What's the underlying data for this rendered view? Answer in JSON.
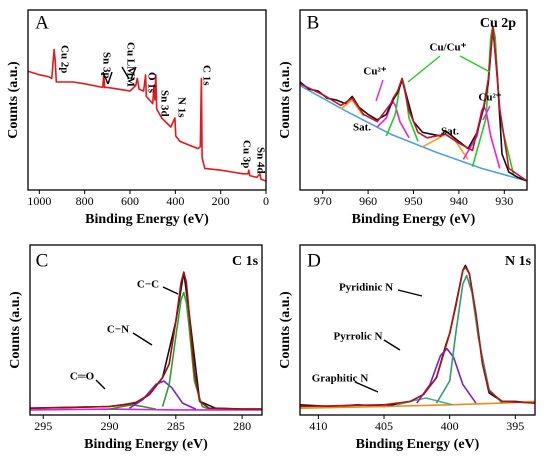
{
  "chart_data": [
    {
      "type": "line",
      "panel_label": "A",
      "xlabel": "Binding Energy (eV)",
      "ylabel": "Counts (a.u.)",
      "xlim": [
        1050,
        0
      ],
      "ylim": [
        0,
        100
      ],
      "xticks": [
        1000,
        800,
        600,
        400,
        200,
        0
      ],
      "annotations": [
        "Cu 2p",
        "Sn 3p",
        "Cu LMM",
        "O 1s",
        "Sn 3d",
        "N 1s",
        "C 1s",
        "Cu 3p",
        "Sn 4d"
      ],
      "series": [
        {
          "color": "#e8161b",
          "x": [
            1050,
            1000,
            960,
            945,
            935,
            930,
            925,
            900,
            850,
            800,
            760,
            720,
            716,
            712,
            700,
            650,
            600,
            575,
            568,
            560,
            540,
            531,
            528,
            500,
            494,
            490,
            486,
            482,
            460,
            420,
            402,
            398,
            380,
            340,
            300,
            290,
            285,
            282,
            270,
            200,
            150,
            100,
            80,
            76,
            72,
            40,
            27,
            22,
            0
          ],
          "values": [
            66,
            64,
            63,
            62,
            78,
            72,
            60,
            60,
            60,
            59,
            58,
            57,
            64,
            57,
            57,
            56,
            55,
            58,
            62,
            56,
            55,
            64,
            52,
            48,
            58,
            50,
            64,
            45,
            40,
            35,
            40,
            30,
            27,
            25,
            23,
            24,
            62,
            18,
            12,
            11,
            10,
            9,
            9,
            11,
            8,
            7,
            9,
            6,
            5
          ]
        }
      ]
    },
    {
      "type": "line",
      "panel_label": "B",
      "title": "Cu 2p",
      "xlabel": "Binding Energy (eV)",
      "ylabel": "Counts (a.u.)",
      "xlim": [
        975,
        925
      ],
      "ylim": [
        0,
        100
      ],
      "xticks": [
        970,
        960,
        950,
        940,
        930
      ],
      "annotations": [
        "Sat.",
        "Cu²⁺",
        "Cu/Cu⁺",
        "Sat.",
        "Cu²⁺"
      ],
      "series": [
        {
          "color": "#4aa3df",
          "x": [
            975,
            965,
            955,
            945,
            935,
            925
          ],
          "values": [
            58,
            44,
            31,
            21,
            12,
            5
          ]
        },
        {
          "color": "#ff9a1a",
          "x": [
            966,
            963.5,
            961
          ],
          "values": [
            45,
            50,
            41
          ]
        },
        {
          "color": "#ff9a1a",
          "x": [
            948,
            945,
            943,
            941,
            938
          ],
          "values": [
            24,
            28,
            31,
            28,
            17
          ]
        },
        {
          "color": "#ee1fd8",
          "x": [
            958,
            956,
            955,
            954.5,
            954,
            953,
            951
          ],
          "values": [
            35,
            40,
            47,
            49,
            47,
            38,
            29
          ]
        },
        {
          "color": "#ee1fd8",
          "x": [
            939,
            936,
            935,
            934.5,
            934,
            933,
            931
          ],
          "values": [
            17,
            30,
            44,
            46,
            44,
            30,
            12
          ]
        },
        {
          "color": "#22cc22",
          "x": [
            956,
            954,
            953,
            952.5,
            952,
            951,
            949
          ],
          "values": [
            30,
            42,
            58,
            62,
            58,
            40,
            27
          ]
        },
        {
          "color": "#22cc22",
          "x": [
            937,
            934,
            933,
            932.5,
            932,
            931,
            928
          ],
          "values": [
            13,
            40,
            85,
            91,
            85,
            40,
            9
          ]
        },
        {
          "color": "#111111",
          "x": [
            975,
            973,
            971,
            969,
            967,
            965,
            963.5,
            962,
            960,
            958,
            956,
            954.5,
            953.5,
            952.5,
            951.5,
            950,
            948,
            946,
            944,
            943,
            942,
            940,
            938,
            936,
            934.5,
            933.5,
            932.5,
            931.5,
            930.5,
            929,
            927,
            925
          ],
          "values": [
            60,
            56,
            55,
            51,
            50,
            48,
            52,
            46,
            42,
            39,
            42,
            50,
            54,
            61,
            52,
            38,
            32,
            31,
            30,
            33,
            31,
            27,
            23,
            32,
            46,
            60,
            90,
            62,
            20,
            10,
            7,
            5
          ]
        },
        {
          "color": "#c8102e",
          "x": [
            975,
            970,
            966,
            963.5,
            961,
            958,
            955,
            954.5,
            953.5,
            952.5,
            951,
            949,
            947,
            943,
            940,
            937,
            935,
            934.5,
            933.5,
            932.5,
            931,
            929,
            925
          ],
          "values": [
            59,
            53,
            47,
            51,
            42,
            38,
            48,
            51,
            55,
            62,
            44,
            32,
            29,
            31,
            26,
            22,
            43,
            47,
            62,
            91,
            45,
            12,
            5
          ]
        }
      ]
    },
    {
      "type": "line",
      "panel_label": "C",
      "title": "C 1s",
      "xlabel": "Binding Energy (eV)",
      "ylabel": "Counts (a.u.)",
      "xlim": [
        296,
        278.5
      ],
      "ylim": [
        0,
        100
      ],
      "xticks": [
        295,
        290,
        285,
        280
      ],
      "annotations": [
        "C−C",
        "C−N",
        "C═O"
      ],
      "series": [
        {
          "color": "#111111",
          "x": [
            296,
            293,
            290,
            288,
            287,
            286,
            285,
            284.4,
            284,
            283.2,
            282,
            280,
            278.5
          ],
          "values": [
            4,
            4.5,
            5,
            7,
            12,
            22,
            55,
            84,
            60,
            8,
            4,
            3.5,
            3.5
          ]
        },
        {
          "color": "#d81fe0",
          "x": [
            296,
            290,
            285,
            278.5
          ],
          "values": [
            3,
            3.5,
            3,
            3
          ]
        },
        {
          "color": "#3a8f2a",
          "x": [
            290,
            289,
            288.3,
            287.5,
            286.5
          ],
          "values": [
            3.5,
            5,
            6,
            5,
            3.5
          ]
        },
        {
          "color": "#7b1fd0",
          "x": [
            288.5,
            287.5,
            286.5,
            285.9,
            285.3,
            284.5,
            283.5
          ],
          "values": [
            4,
            9,
            18,
            20,
            16,
            7,
            3.5
          ]
        },
        {
          "color": "#2ea02e",
          "x": [
            286,
            285.5,
            285,
            284.6,
            284.4,
            284.2,
            284,
            283.6,
            283,
            282.5
          ],
          "values": [
            5,
            18,
            46,
            68,
            72,
            66,
            52,
            20,
            5,
            3.5
          ]
        },
        {
          "color": "#a01010",
          "x": [
            296,
            290,
            289,
            288,
            287,
            286.5,
            286,
            285.5,
            285,
            284.6,
            284.4,
            284.2,
            284,
            283.6,
            283.2,
            282.5,
            280,
            278.5
          ],
          "values": [
            4,
            5,
            6,
            7.5,
            12,
            17,
            22,
            30,
            55,
            78,
            84,
            78,
            60,
            25,
            8,
            4,
            3.5,
            3.5
          ]
        }
      ]
    },
    {
      "type": "line",
      "panel_label": "D",
      "title": "N 1s",
      "xlabel": "Binding Energy (eV)",
      "ylabel": "Counts (a.u.)",
      "xlim": [
        411.4,
        393.5
      ],
      "ylim": [
        0,
        100
      ],
      "xticks": [
        410,
        405,
        400,
        395
      ],
      "annotations": [
        "Pyridinic N",
        "Pyrrolic N",
        "Graphitic N"
      ],
      "series": [
        {
          "color": "#111111",
          "x": [
            411.4,
            409,
            407,
            405,
            403,
            402,
            401,
            400.3,
            400,
            399.5,
            399,
            398.8,
            398.5,
            398,
            397.5,
            397,
            396,
            395,
            393.5
          ],
          "values": [
            6,
            5,
            6,
            5,
            8,
            12,
            22,
            41,
            48,
            66,
            85,
            88,
            83,
            59,
            30,
            13,
            8,
            8,
            7
          ]
        },
        {
          "color": "#f08a1a",
          "x": [
            411.4,
            405,
            400,
            396,
            393.5
          ],
          "values": [
            4,
            5,
            6,
            7,
            8
          ]
        },
        {
          "color": "#4caf7a",
          "x": [
            404,
            403,
            401.8,
            400.8,
            399.8
          ],
          "values": [
            6,
            8,
            10,
            8,
            6
          ]
        },
        {
          "color": "#7b1fd0",
          "x": [
            402.5,
            401.5,
            400.7,
            400.2,
            399.7,
            399,
            398
          ],
          "values": [
            7,
            18,
            35,
            39,
            34,
            18,
            7
          ]
        },
        {
          "color": "#2e9e6e",
          "x": [
            401,
            400,
            399.5,
            399,
            398.7,
            398.3,
            397.8,
            397,
            396
          ],
          "values": [
            7,
            20,
            50,
            77,
            82,
            72,
            45,
            15,
            7
          ]
        },
        {
          "color": "#b01515",
          "x": [
            411.4,
            405,
            403,
            402,
            401,
            400.3,
            400,
            399.5,
            399,
            398.8,
            398.5,
            398,
            397.5,
            397,
            396,
            393.5
          ],
          "values": [
            5,
            6,
            8,
            12,
            22,
            40,
            48,
            65,
            85,
            87,
            83,
            60,
            30,
            14,
            8,
            7
          ]
        }
      ]
    }
  ]
}
